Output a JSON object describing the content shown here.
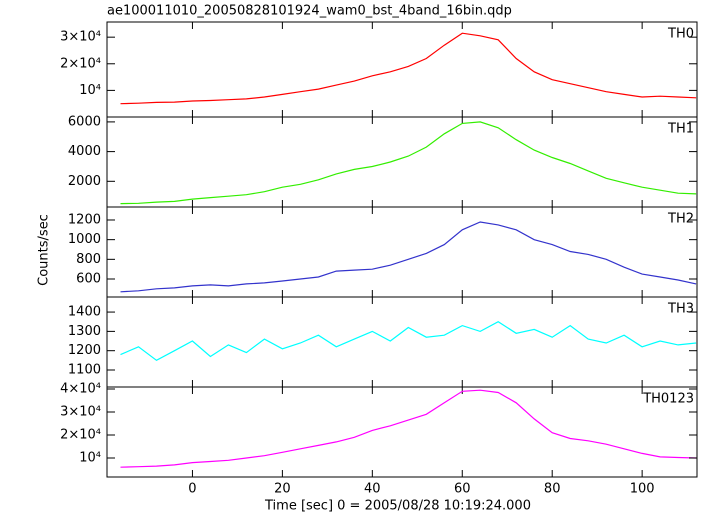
{
  "title": "ae100011010_20050828101924_wam0_bst_4band_16bin.qdp",
  "ylabel": "Counts/sec",
  "xlabel": "Time [sec] 0 = 2005/08/28 10:19:24.000",
  "x": [
    -16,
    -12,
    -8,
    -4,
    0,
    4,
    8,
    12,
    16,
    20,
    24,
    28,
    32,
    36,
    40,
    44,
    48,
    52,
    56,
    60,
    64,
    68,
    72,
    76,
    80,
    84,
    88,
    92,
    96,
    100,
    104,
    108,
    112
  ],
  "xlim": [
    -19,
    112.2
  ],
  "xticks": [
    0,
    20,
    40,
    60,
    80,
    100
  ],
  "chart_data": [
    {
      "type": "line",
      "ylim": [
        0,
        35700
      ],
      "yticks": [
        {
          "value": 10000,
          "label": "10⁴"
        },
        {
          "value": 20000,
          "label": "2×10⁴"
        },
        {
          "value": 30000,
          "label": "3×10⁴"
        }
      ],
      "series": [
        {
          "name": "TH0",
          "color": "#ff0000",
          "values": [
            5000,
            5200,
            5500,
            5600,
            6000,
            6200,
            6500,
            6800,
            7500,
            8500,
            9500,
            10500,
            12000,
            13500,
            15500,
            17000,
            19000,
            22000,
            27000,
            31500,
            30500,
            29000,
            22000,
            17000,
            14000,
            12500,
            11000,
            9500,
            8500,
            7500,
            7800,
            7500,
            7200
          ]
        }
      ]
    },
    {
      "type": "line",
      "ylim": [
        270,
        6330
      ],
      "yticks": [
        2000,
        4000,
        6000
      ],
      "series": [
        {
          "name": "TH1",
          "color": "#33ee00",
          "values": [
            500,
            520,
            600,
            650,
            800,
            900,
            1000,
            1100,
            1300,
            1600,
            1800,
            2100,
            2500,
            2800,
            3000,
            3300,
            3700,
            4300,
            5200,
            5900,
            6000,
            5600,
            4800,
            4100,
            3600,
            3200,
            2700,
            2200,
            1900,
            1600,
            1400,
            1200,
            1150
          ]
        }
      ]
    },
    {
      "type": "line",
      "ylim": [
        417,
        1332
      ],
      "yticks": [
        600,
        800,
        1000,
        1200
      ],
      "series": [
        {
          "name": "TH2",
          "color": "#3333cc",
          "values": [
            470,
            480,
            500,
            510,
            530,
            540,
            530,
            550,
            560,
            580,
            600,
            620,
            680,
            690,
            700,
            740,
            800,
            860,
            950,
            1100,
            1180,
            1150,
            1100,
            1000,
            950,
            880,
            850,
            800,
            720,
            650,
            620,
            590,
            550
          ]
        }
      ]
    },
    {
      "type": "line",
      "ylim": [
        1012,
        1478
      ],
      "yticks": [
        1100,
        1200,
        1300,
        1400
      ],
      "series": [
        {
          "name": "TH3",
          "color": "#00ffff",
          "values": [
            1180,
            1220,
            1150,
            1200,
            1250,
            1170,
            1230,
            1190,
            1260,
            1210,
            1240,
            1280,
            1220,
            1260,
            1300,
            1250,
            1320,
            1270,
            1280,
            1330,
            1300,
            1350,
            1290,
            1310,
            1270,
            1330,
            1260,
            1240,
            1280,
            1220,
            1250,
            1230,
            1240
          ]
        }
      ]
    },
    {
      "type": "line",
      "ylim": [
        1740,
        40870
      ],
      "yticks": [
        {
          "value": 10000,
          "label": "10⁴"
        },
        {
          "value": 20000,
          "label": "2×10⁴"
        },
        {
          "value": 30000,
          "label": "3×10⁴"
        },
        {
          "value": 40000,
          "label": "4×10⁴"
        }
      ],
      "series": [
        {
          "name": "TH0123",
          "color": "#ff00ff",
          "values": [
            6000,
            6200,
            6500,
            7000,
            8000,
            8500,
            9000,
            10000,
            11000,
            12500,
            14000,
            15500,
            17000,
            19000,
            22000,
            24000,
            26500,
            29000,
            34000,
            39000,
            39500,
            38500,
            34000,
            27000,
            21000,
            18500,
            17500,
            16000,
            14000,
            12000,
            10500,
            10200,
            10000
          ]
        }
      ]
    }
  ]
}
